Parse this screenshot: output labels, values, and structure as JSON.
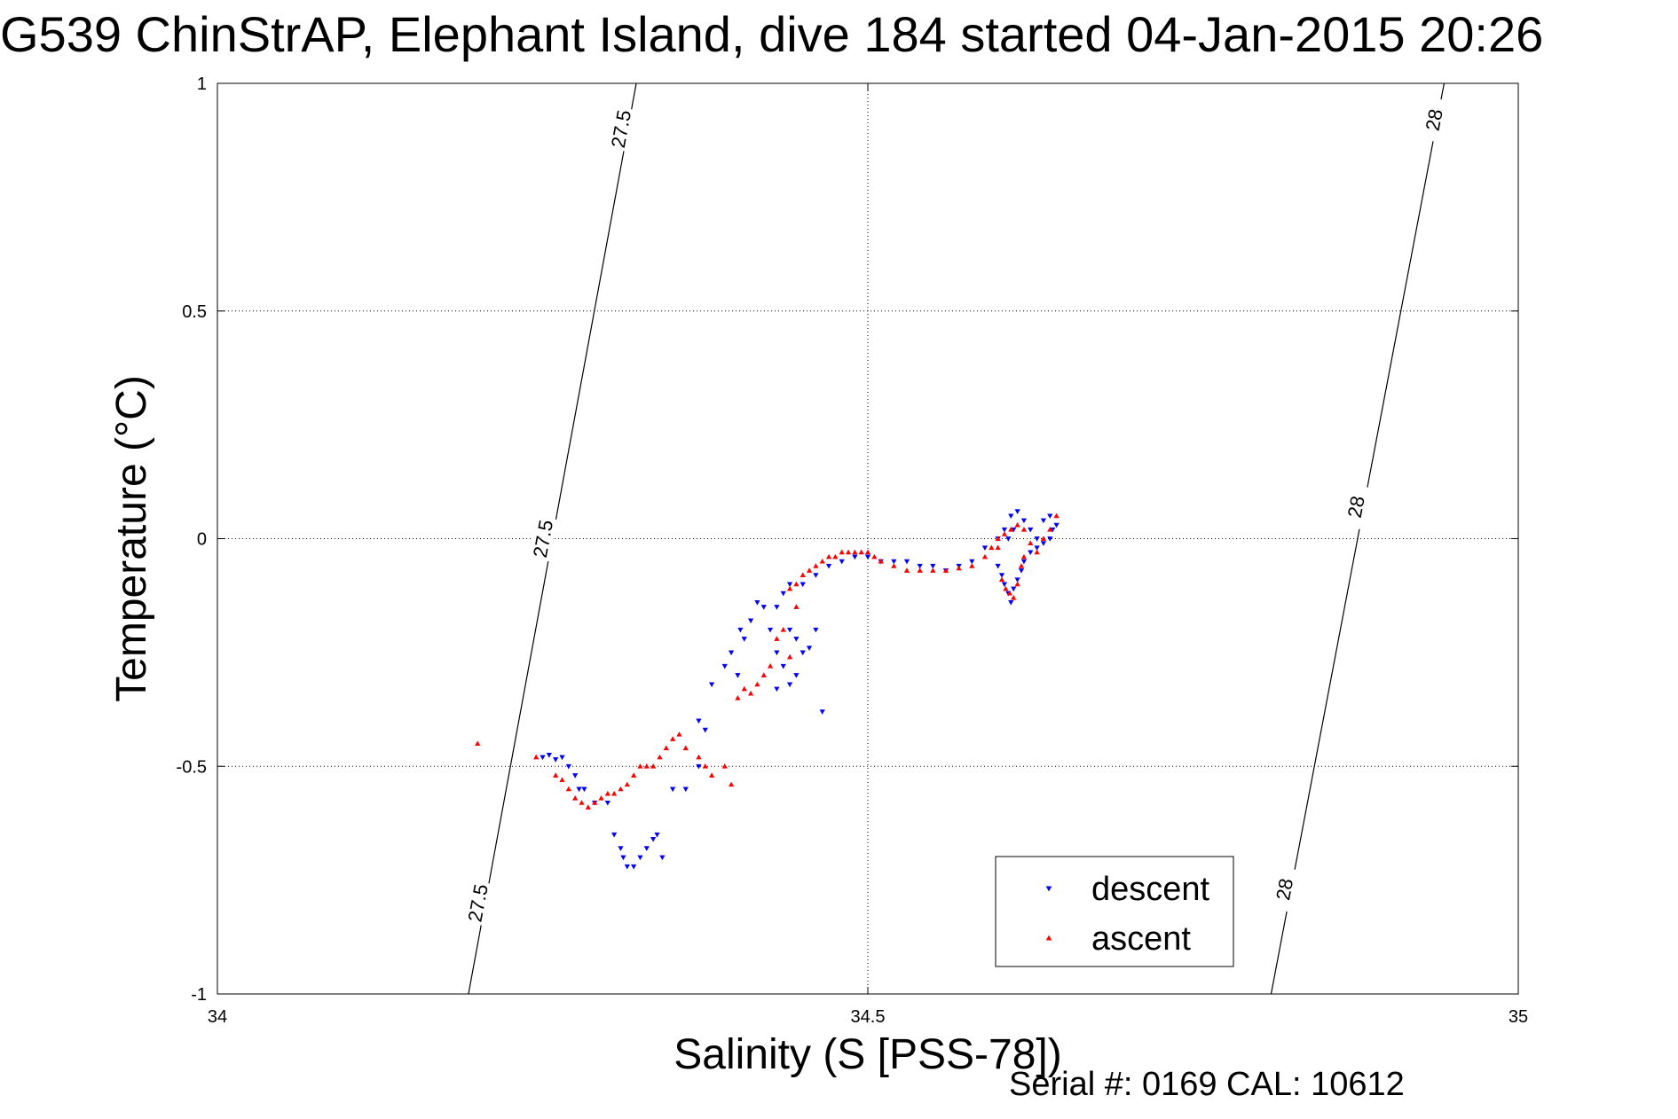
{
  "title": "G539 ChinStrAP, Elephant Island, dive 184 started 04-Jan-2015 20:26",
  "footer": "Serial #: 0169 CAL: 10612",
  "chart_data": {
    "type": "scatter",
    "title": "G539 ChinStrAP, Elephant Island, dive 184 started 04-Jan-2015 20:26",
    "xlabel": "Salinity (S [PSS-78])",
    "ylabel": "Temperature (°C)",
    "xlim": [
      34,
      35
    ],
    "ylim": [
      -1,
      1
    ],
    "xticks": [
      34,
      34.5,
      35
    ],
    "xtick_labels": [
      "34",
      "34.5",
      "35"
    ],
    "yticks": [
      -1,
      -0.5,
      0,
      0.5,
      1
    ],
    "ytick_labels": [
      "-1",
      "-0.5",
      "0",
      "0.5",
      "1"
    ],
    "grid": true,
    "legend_position": "bottom-right",
    "series": [
      {
        "name": "descent",
        "color": "#0000ff",
        "marker": "triangle-down",
        "points": [
          [
            34.25,
            -0.48
          ],
          [
            34.255,
            -0.475
          ],
          [
            34.26,
            -0.485
          ],
          [
            34.265,
            -0.48
          ],
          [
            34.27,
            -0.5
          ],
          [
            34.275,
            -0.52
          ],
          [
            34.278,
            -0.55
          ],
          [
            34.282,
            -0.55
          ],
          [
            34.29,
            -0.58
          ],
          [
            34.3,
            -0.58
          ],
          [
            34.305,
            -0.65
          ],
          [
            34.31,
            -0.68
          ],
          [
            34.312,
            -0.7
          ],
          [
            34.315,
            -0.72
          ],
          [
            34.32,
            -0.72
          ],
          [
            34.325,
            -0.7
          ],
          [
            34.33,
            -0.68
          ],
          [
            34.335,
            -0.66
          ],
          [
            34.338,
            -0.65
          ],
          [
            34.342,
            -0.7
          ],
          [
            34.35,
            -0.55
          ],
          [
            34.36,
            -0.55
          ],
          [
            34.37,
            -0.5
          ],
          [
            34.37,
            -0.4
          ],
          [
            34.375,
            -0.42
          ],
          [
            34.38,
            -0.32
          ],
          [
            34.39,
            -0.28
          ],
          [
            34.395,
            -0.25
          ],
          [
            34.4,
            -0.3
          ],
          [
            34.402,
            -0.2
          ],
          [
            34.405,
            -0.22
          ],
          [
            34.41,
            -0.18
          ],
          [
            34.415,
            -0.14
          ],
          [
            34.42,
            -0.15
          ],
          [
            34.425,
            -0.2
          ],
          [
            34.43,
            -0.25
          ],
          [
            34.435,
            -0.28
          ],
          [
            34.44,
            -0.2
          ],
          [
            34.445,
            -0.22
          ],
          [
            34.43,
            -0.33
          ],
          [
            34.44,
            -0.32
          ],
          [
            34.445,
            -0.3
          ],
          [
            34.45,
            -0.25
          ],
          [
            34.455,
            -0.24
          ],
          [
            34.46,
            -0.2
          ],
          [
            34.465,
            -0.38
          ],
          [
            34.43,
            -0.15
          ],
          [
            34.435,
            -0.12
          ],
          [
            34.44,
            -0.1
          ],
          [
            34.45,
            -0.1
          ],
          [
            34.46,
            -0.08
          ],
          [
            34.47,
            -0.06
          ],
          [
            34.48,
            -0.05
          ],
          [
            34.49,
            -0.04
          ],
          [
            34.5,
            -0.04
          ],
          [
            34.51,
            -0.05
          ],
          [
            34.52,
            -0.05
          ],
          [
            34.53,
            -0.05
          ],
          [
            34.54,
            -0.06
          ],
          [
            34.55,
            -0.06
          ],
          [
            34.56,
            -0.07
          ],
          [
            34.57,
            -0.06
          ],
          [
            34.58,
            -0.05
          ],
          [
            34.59,
            -0.02
          ],
          [
            34.6,
            0.0
          ],
          [
            34.605,
            0.02
          ],
          [
            34.61,
            0.05
          ],
          [
            34.615,
            0.06
          ],
          [
            34.62,
            0.04
          ],
          [
            34.625,
            0.02
          ],
          [
            34.63,
            0.0
          ],
          [
            34.635,
            0.04
          ],
          [
            34.64,
            0.05
          ],
          [
            34.645,
            0.03
          ],
          [
            34.6,
            -0.06
          ],
          [
            34.603,
            -0.08
          ],
          [
            34.605,
            -0.1
          ],
          [
            34.608,
            -0.12
          ],
          [
            34.61,
            -0.14
          ],
          [
            34.612,
            -0.11
          ],
          [
            34.615,
            -0.09
          ],
          [
            34.618,
            -0.07
          ],
          [
            34.62,
            -0.05
          ],
          [
            34.625,
            -0.03
          ],
          [
            34.63,
            -0.02
          ],
          [
            34.635,
            -0.01
          ],
          [
            34.64,
            0.0
          ],
          [
            34.642,
            0.02
          ],
          [
            34.608,
            0.0
          ],
          [
            34.612,
            0.02
          ]
        ]
      },
      {
        "name": "ascent",
        "color": "#ff0000",
        "marker": "triangle-up",
        "points": [
          [
            34.2,
            -0.45
          ],
          [
            34.245,
            -0.48
          ],
          [
            34.26,
            -0.52
          ],
          [
            34.265,
            -0.53
          ],
          [
            34.27,
            -0.55
          ],
          [
            34.275,
            -0.57
          ],
          [
            34.28,
            -0.58
          ],
          [
            34.285,
            -0.59
          ],
          [
            34.29,
            -0.58
          ],
          [
            34.295,
            -0.57
          ],
          [
            34.3,
            -0.56
          ],
          [
            34.305,
            -0.56
          ],
          [
            34.31,
            -0.55
          ],
          [
            34.315,
            -0.54
          ],
          [
            34.32,
            -0.52
          ],
          [
            34.325,
            -0.5
          ],
          [
            34.33,
            -0.5
          ],
          [
            34.335,
            -0.5
          ],
          [
            34.34,
            -0.48
          ],
          [
            34.345,
            -0.46
          ],
          [
            34.35,
            -0.44
          ],
          [
            34.355,
            -0.43
          ],
          [
            34.36,
            -0.46
          ],
          [
            34.37,
            -0.48
          ],
          [
            34.375,
            -0.5
          ],
          [
            34.38,
            -0.52
          ],
          [
            34.39,
            -0.5
          ],
          [
            34.395,
            -0.54
          ],
          [
            34.4,
            -0.35
          ],
          [
            34.405,
            -0.33
          ],
          [
            34.41,
            -0.34
          ],
          [
            34.415,
            -0.32
          ],
          [
            34.42,
            -0.3
          ],
          [
            34.425,
            -0.28
          ],
          [
            34.43,
            -0.22
          ],
          [
            34.435,
            -0.2
          ],
          [
            34.44,
            -0.26
          ],
          [
            34.445,
            -0.15
          ],
          [
            34.44,
            -0.11
          ],
          [
            34.445,
            -0.1
          ],
          [
            34.45,
            -0.08
          ],
          [
            34.455,
            -0.07
          ],
          [
            34.46,
            -0.06
          ],
          [
            34.465,
            -0.05
          ],
          [
            34.47,
            -0.04
          ],
          [
            34.475,
            -0.04
          ],
          [
            34.48,
            -0.03
          ],
          [
            34.485,
            -0.03
          ],
          [
            34.49,
            -0.03
          ],
          [
            34.495,
            -0.03
          ],
          [
            34.5,
            -0.03
          ],
          [
            34.505,
            -0.04
          ],
          [
            34.51,
            -0.05
          ],
          [
            34.52,
            -0.06
          ],
          [
            34.53,
            -0.07
          ],
          [
            34.54,
            -0.07
          ],
          [
            34.55,
            -0.07
          ],
          [
            34.56,
            -0.07
          ],
          [
            34.57,
            -0.065
          ],
          [
            34.58,
            -0.06
          ],
          [
            34.59,
            -0.04
          ],
          [
            34.595,
            -0.02
          ],
          [
            34.6,
            0.0
          ],
          [
            34.605,
            0.01
          ],
          [
            34.61,
            0.02
          ],
          [
            34.615,
            0.03
          ],
          [
            34.62,
            0.02
          ],
          [
            34.625,
            -0.01
          ],
          [
            34.63,
            -0.03
          ],
          [
            34.635,
            0.0
          ],
          [
            34.64,
            0.02
          ],
          [
            34.645,
            0.05
          ],
          [
            34.603,
            -0.09
          ],
          [
            34.606,
            -0.11
          ],
          [
            34.609,
            -0.12
          ],
          [
            34.612,
            -0.13
          ],
          [
            34.615,
            -0.1
          ],
          [
            34.618,
            -0.06
          ],
          [
            34.62,
            -0.04
          ],
          [
            34.6,
            -0.02
          ]
        ]
      }
    ],
    "contours": [
      {
        "label": "27.5",
        "points": [
          [
            34.193,
            -1.0
          ],
          [
            34.322,
            1.0
          ]
        ],
        "label_positions": [
          [
            34.2,
            -0.8
          ],
          [
            34.25,
            0.0
          ],
          [
            34.31,
            0.9
          ]
        ]
      },
      {
        "label": "28",
        "points": [
          [
            34.81,
            -1.0
          ],
          [
            34.943,
            1.0
          ]
        ],
        "label_positions": [
          [
            34.82,
            -0.77
          ],
          [
            34.875,
            0.07
          ],
          [
            34.935,
            0.92
          ]
        ]
      }
    ]
  }
}
